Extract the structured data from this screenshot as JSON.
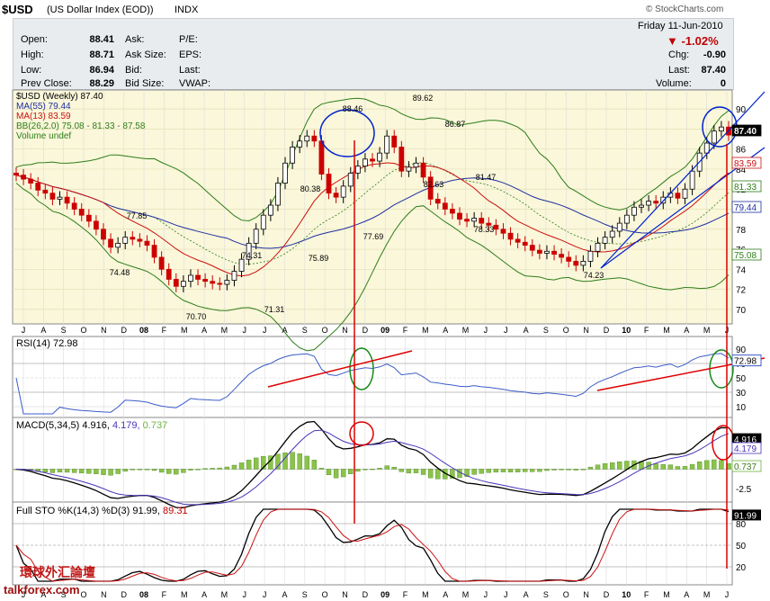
{
  "header": {
    "symbol": "$USD",
    "name": "(US Dollar Index (EOD))",
    "exchange": "INDX",
    "watermark": "© StockCharts.com",
    "date": "Friday  11-Jun-2010"
  },
  "quote": {
    "open_label": "Open:",
    "open": "88.41",
    "high_label": "High:",
    "high": "88.71",
    "low_label": "Low:",
    "low": "86.94",
    "prev_label": "Prev Close:",
    "prev": "88.29",
    "ask_label": "Ask:",
    "ask_size_label": "Ask Size:",
    "bid_label": "Bid:",
    "bid_size_label": "Bid Size:",
    "pe_label": "P/E:",
    "eps_label": "EPS:",
    "last_label": "Last:",
    "vwap_label": "VWAP:",
    "pct_change": "-1.02%",
    "chg_label": "Chg:",
    "chg": "-0.90",
    "last2_label": "Last:",
    "last": "87.40",
    "vol_label": "Volume:",
    "volume": "0"
  },
  "legend": {
    "price": "$USD (Weekly) 87.40",
    "ma55": "MA(55) 79.44",
    "ma13": "MA(13) 83.59",
    "bb": "BB(26,2.0) 75.08 - 81.33 - 87.58",
    "volume": "Volume undef"
  },
  "panels": {
    "rsi_title": "RSI(14) 72.98",
    "macd_title": "MACD(5,34,5) 4.916,",
    "macd_signal": "4.179,",
    "macd_hist": "0.737",
    "sto_title": "Full STO %K(14,3) %D(3) 91.99,",
    "sto_d": "89.31"
  },
  "colors": {
    "price_bg": "#faf7da",
    "up": "#000000",
    "down": "#cc0000",
    "ma55": "#1f2fa0",
    "ma13": "#cc1010",
    "bb": "#2e7d1a",
    "rsi": "#3b5cc8",
    "annotation_red": "#dd0000",
    "circle_blue": "#0022cc",
    "circle_green": "#1a8a1a"
  },
  "chart_data": {
    "type": "line",
    "title": "$USD (Weekly) 87.40",
    "x_axis_months": [
      "J",
      "A",
      "S",
      "O",
      "N",
      "D",
      "08",
      "F",
      "M",
      "A",
      "M",
      "J",
      "J",
      "A",
      "S",
      "O",
      "N",
      "D",
      "09",
      "F",
      "M",
      "A",
      "M",
      "J",
      "J",
      "A",
      "S",
      "O",
      "N",
      "D",
      "10",
      "F",
      "M",
      "A",
      "M",
      "J"
    ],
    "price_axis": {
      "ylim": [
        69,
        91
      ],
      "ticks": [
        "90",
        "88",
        "86",
        "84",
        "82",
        "80",
        "78",
        "76",
        "74",
        "72",
        "70"
      ]
    },
    "price_labels": [
      "88.46",
      "89.62",
      "86.87",
      "80.38",
      "82.63",
      "81.47",
      "77.85",
      "74.48",
      "74.31",
      "75.89",
      "77.69",
      "78.33",
      "70.70",
      "71.31",
      "74.23"
    ],
    "price_closes": [
      83.4,
      83.0,
      82.6,
      81.9,
      81.6,
      81.0,
      81.2,
      80.6,
      80.0,
      79.4,
      78.8,
      78.0,
      77.0,
      76.2,
      76.6,
      77.2,
      77.0,
      76.8,
      76.4,
      75.2,
      74.0,
      73.0,
      72.3,
      72.8,
      73.4,
      73.0,
      72.8,
      72.6,
      72.5,
      72.9,
      73.8,
      75.0,
      76.6,
      78.0,
      79.4,
      80.4,
      82.6,
      84.6,
      86.2,
      86.8,
      87.3,
      86.8,
      83.5,
      81.6,
      81.2,
      82.3,
      83.6,
      84.3,
      85.0,
      84.8,
      85.6,
      87.3,
      86.2,
      83.8,
      84.2,
      84.6,
      83.2,
      81.0,
      80.6,
      80.0,
      79.6,
      79.0,
      78.8,
      79.1,
      78.6,
      78.4,
      78.0,
      77.6,
      77.0,
      76.7,
      76.4,
      75.9,
      75.6,
      75.8,
      75.5,
      75.2,
      74.8,
      74.4,
      74.8,
      75.8,
      76.6,
      77.2,
      77.8,
      78.6,
      79.4,
      80.2,
      80.4,
      80.8,
      80.6,
      81.2,
      81.6,
      81.1,
      82.0,
      83.8,
      85.6,
      86.6,
      87.8,
      88.2,
      87.4
    ],
    "ma13_last": 83.59,
    "ma55_last": 79.44,
    "bb_last": [
      75.08,
      81.33,
      87.58
    ],
    "right_labels": [
      "87.40",
      "83.59",
      "81.33",
      "79.44",
      "75.08"
    ],
    "rsi": {
      "last": 72.98,
      "ticks": [
        "90",
        "70",
        "50",
        "30",
        "10"
      ]
    },
    "macd": {
      "macd": 4.916,
      "signal": 4.179,
      "histogram": 0.737,
      "ticks": [
        "2.5",
        "-2.5"
      ],
      "labels": [
        "4.916",
        "4.179",
        "0.737"
      ]
    },
    "sto": {
      "k": 91.99,
      "d": 89.31,
      "ticks": [
        "80",
        "50",
        "20"
      ],
      "label": "91.99"
    }
  },
  "footer": {
    "site_cn": "環球外汇論壇",
    "site": "talkforex.com"
  }
}
